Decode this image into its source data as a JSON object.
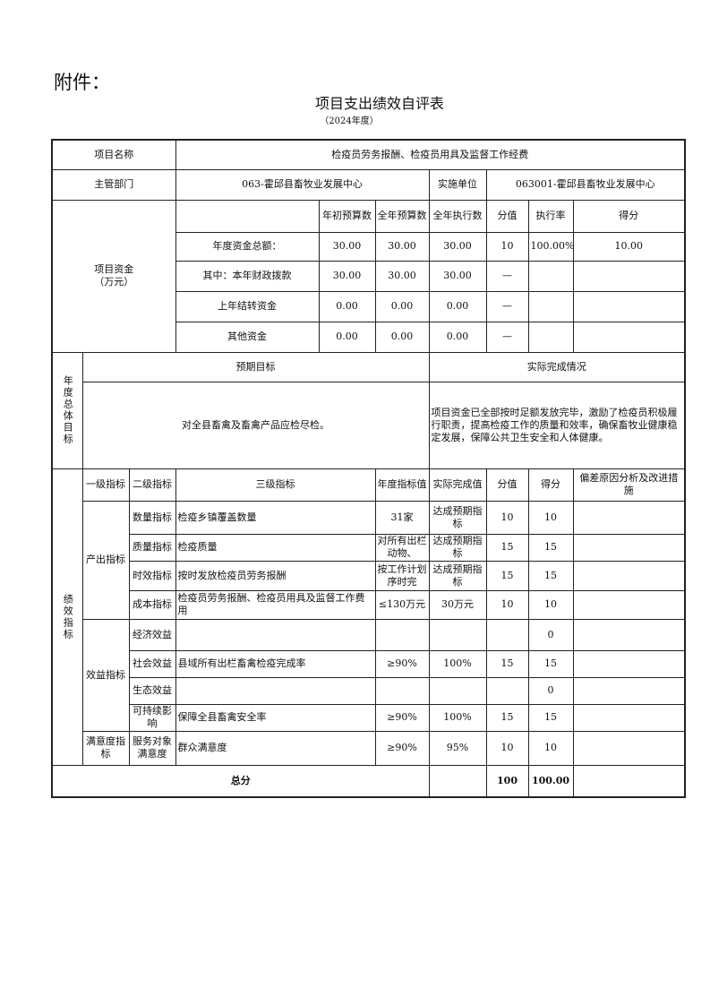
{
  "attachment": "附件：",
  "title": "项目支出绩效自评表",
  "year": "（2024年度）",
  "project": {
    "name_label": "项目名称",
    "name": "检疫员劳务报酬、检疫员用具及监督工作经费",
    "dept_label": "主管部门",
    "dept": "063-霍邱县畜牧业发展中心",
    "unit_label": "实施单位",
    "unit": "063001-霍邱县畜牧业发展中心"
  },
  "funds": {
    "label": "项目资金\n（万元）",
    "headers": [
      "年初预算数",
      "全年预算数",
      "全年执行数",
      "分值",
      "执行率",
      "得分"
    ],
    "rows": [
      {
        "name": "年度资金总额：",
        "v": [
          "30.00",
          "30.00",
          "30.00",
          "10",
          "100.00%",
          "10.00"
        ]
      },
      {
        "name": "其中：本年财政拨款",
        "v": [
          "30.00",
          "30.00",
          "30.00",
          "—",
          "",
          ""
        ]
      },
      {
        "name": "上年结转资金",
        "v": [
          "0.00",
          "0.00",
          "0.00",
          "—",
          "",
          ""
        ]
      },
      {
        "name": "其他资金",
        "v": [
          "0.00",
          "0.00",
          "0.00",
          "—",
          "",
          ""
        ]
      }
    ]
  },
  "goal": {
    "label": "年度总体目标",
    "expected_label": "预期目标",
    "actual_label": "实际完成情况",
    "expected": "对全县畜禽及畜禽产品应检尽检。",
    "actual": "项目资金已全部按时足额发放完毕，激励了检疫员积极履行职责，提高检疫工作的质量和效率，确保畜牧业健康稳定发展，保障公共卫生安全和人体健康。"
  },
  "indicators": {
    "label": "绩效指标",
    "headers": [
      "一级指标",
      "二级指标",
      "三级指标",
      "年度指标值",
      "实际完成值",
      "分值",
      "得分",
      "偏差原因分析及改进措施"
    ],
    "groups": [
      {
        "l1": "产出指标",
        "rows": [
          {
            "l2": "数量指标",
            "l3": "检疫乡镇覆盖数量",
            "target": "31家",
            "actual": "达成预期指标",
            "score_max": "10",
            "score": "10",
            "note": ""
          },
          {
            "l2": "质量指标",
            "l3": "检疫质量",
            "target": "对所有出栏动物、",
            "actual": "达成预期指标",
            "score_max": "15",
            "score": "15",
            "note": ""
          },
          {
            "l2": "时效指标",
            "l3": "按时发放检疫员劳务报酬",
            "target": "按工作计划序时完",
            "actual": "达成预期指标",
            "score_max": "15",
            "score": "15",
            "note": ""
          },
          {
            "l2": "成本指标",
            "l3": "检疫员劳务报酬、检疫员用具及监督工作费用",
            "target": "≤130万元",
            "actual": "30万元",
            "score_max": "10",
            "score": "10",
            "note": ""
          }
        ]
      },
      {
        "l1": "效益指标",
        "rows": [
          {
            "l2": "经济效益",
            "l3": "",
            "target": "",
            "actual": "",
            "score_max": "",
            "score": "0",
            "note": ""
          },
          {
            "l2": "社会效益",
            "l3": "县域所有出栏畜禽检疫完成率",
            "target": "≥90%",
            "actual": "100%",
            "score_max": "15",
            "score": "15",
            "note": ""
          },
          {
            "l2": "生态效益",
            "l3": "",
            "target": "",
            "actual": "",
            "score_max": "",
            "score": "0",
            "note": ""
          },
          {
            "l2": "可持续影响",
            "l3": "保障全县畜禽安全率",
            "target": "≥90%",
            "actual": "100%",
            "score_max": "15",
            "score": "15",
            "note": ""
          }
        ]
      },
      {
        "l1": "满意度指标",
        "rows": [
          {
            "l2": "服务对象满意度",
            "l3": "群众满意度",
            "target": "≥90%",
            "actual": "95%",
            "score_max": "10",
            "score": "10",
            "note": ""
          }
        ]
      }
    ]
  },
  "total": {
    "label": "总分",
    "blank": "",
    "score_max": "100",
    "score": "100.00",
    "note": ""
  }
}
